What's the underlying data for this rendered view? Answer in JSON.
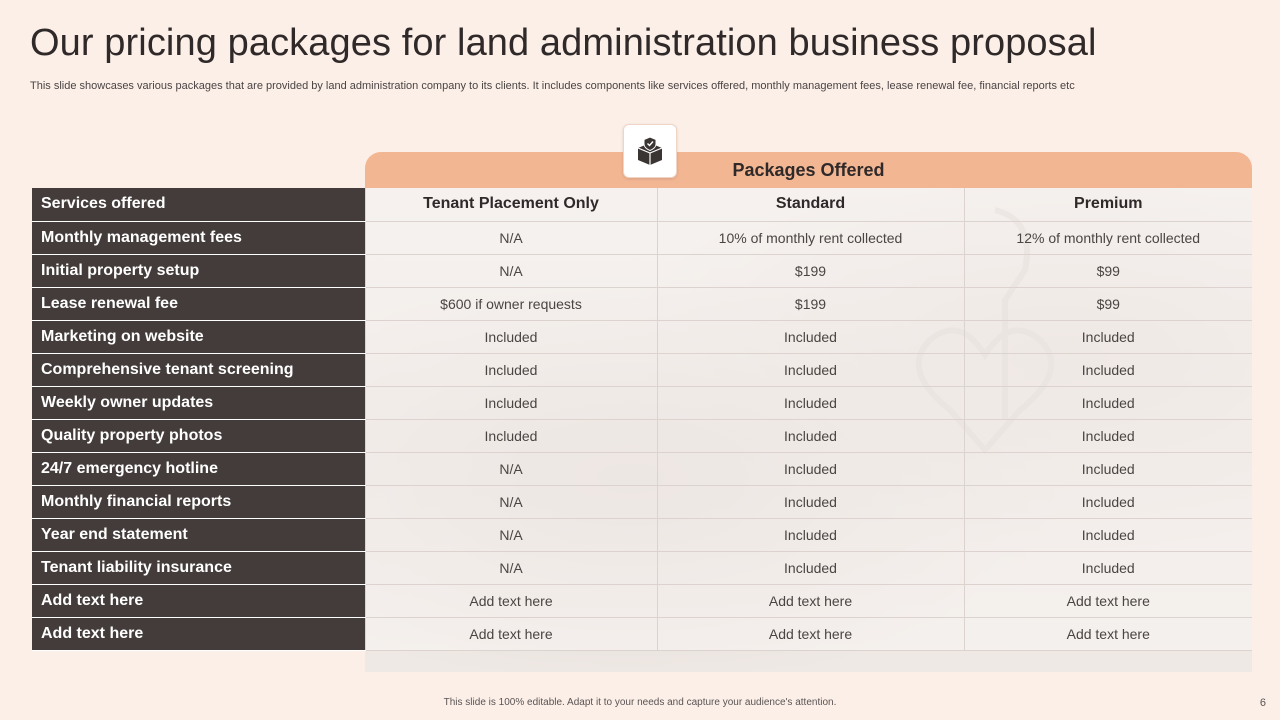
{
  "title": "Our pricing packages for land administration  business proposal",
  "subtitle": "This slide showcases various packages that are provided by land administration company to its clients. It includes components like services offered, monthly management fees, lease renewal fee, financial reports etc",
  "icon": "box-with-shield-icon",
  "packages_header": "Packages Offered",
  "table": {
    "header_label": "Services offered",
    "columns": [
      "Tenant Placement Only",
      "Standard",
      "Premium"
    ],
    "rows": [
      {
        "label": "Monthly management fees",
        "values": [
          "N/A",
          "10% of monthly rent collected",
          "12% of monthly rent collected"
        ]
      },
      {
        "label": "Initial property setup",
        "values": [
          "N/A",
          "$199",
          "$99"
        ]
      },
      {
        "label": "Lease renewal fee",
        "values": [
          "$600 if owner requests",
          "$199",
          "$99"
        ]
      },
      {
        "label": "Marketing on website",
        "values": [
          "Included",
          "Included",
          "Included"
        ]
      },
      {
        "label": "Comprehensive tenant screening",
        "values": [
          "Included",
          "Included",
          "Included"
        ]
      },
      {
        "label": "Weekly owner updates",
        "values": [
          "Included",
          "Included",
          "Included"
        ]
      },
      {
        "label": "Quality property photos",
        "values": [
          "Included",
          "Included",
          "Included"
        ]
      },
      {
        "label": "24/7 emergency hotline",
        "values": [
          "N/A",
          "Included",
          "Included"
        ]
      },
      {
        "label": "Monthly financial reports",
        "values": [
          "N/A",
          "Included",
          "Included"
        ]
      },
      {
        "label": "Year end statement",
        "values": [
          "N/A",
          "Included",
          "Included"
        ]
      },
      {
        "label": "Tenant liability insurance",
        "values": [
          "N/A",
          "Included",
          "Included"
        ]
      },
      {
        "label": "Add text  here",
        "values": [
          "Add text here",
          "Add text here",
          "Add text here"
        ]
      },
      {
        "label": "Add text  here",
        "values": [
          "Add text here",
          "Add text here",
          "Add text here"
        ]
      }
    ]
  },
  "footer": "This slide is 100% editable.  Adapt it to your needs and capture your audience's attention.",
  "page_number": "6"
}
